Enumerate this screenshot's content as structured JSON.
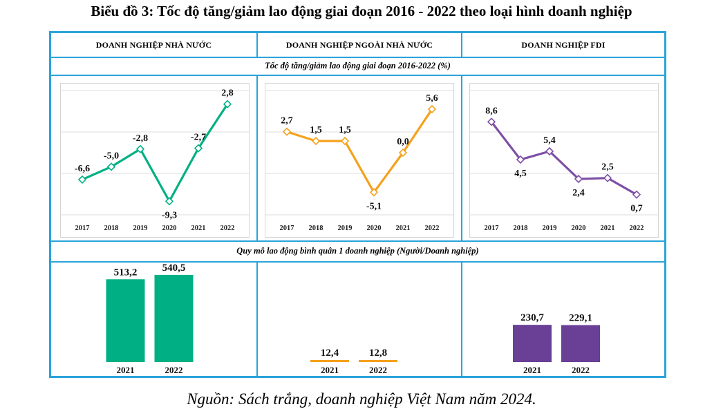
{
  "title": "Biểu đồ 3: Tốc độ tăng/giảm lao động giai đoạn 2016 - 2022 theo loại hình doanh nghiệp",
  "source": "Nguồn: Sách trắng, doanh nghiệp Việt Nam năm 2024.",
  "panels": [
    {
      "header": "DOANH NGHIỆP NHÀ NƯỚC"
    },
    {
      "header": "DOANH NGHIỆP NGOÀI NHÀ NƯỚC"
    },
    {
      "header": "DOANH NGHIỆP FDI"
    }
  ],
  "line_section_title": "Tốc độ tăng/giảm lao động giai đoạn 2016-2022 (%)",
  "bar_section_title": "Quy mô lao động bình quân 1 doanh nghiệp  (Người/Doanh nghiệp)",
  "chart_data": [
    {
      "type": "line",
      "panel": "DOANH NGHIỆP NHÀ NƯỚC",
      "title": "Tốc độ tăng/giảm lao động giai đoạn 2016-2022 (%)",
      "x": [
        "2017",
        "2018",
        "2019",
        "2020",
        "2021",
        "2022"
      ],
      "values": [
        -6.6,
        -5.0,
        -2.8,
        -9.3,
        -2.7,
        2.8
      ],
      "labels": [
        "-6,6",
        "-5,0",
        "-2,8",
        "-9,3",
        "-2,7",
        "2,8"
      ],
      "ylim": [
        -11,
        4.5
      ],
      "color": "#00b084",
      "grid": true
    },
    {
      "type": "line",
      "panel": "DOANH NGHIỆP NGOÀI NHÀ NƯỚC",
      "title": "Tốc độ tăng/giảm lao động giai đoạn 2016-2022 (%)",
      "x": [
        "2017",
        "2018",
        "2019",
        "2020",
        "2021",
        "2022"
      ],
      "values": [
        2.7,
        1.5,
        1.5,
        -5.1,
        0.0,
        5.6
      ],
      "labels": [
        "2,7",
        "1,5",
        "1,5",
        "-5,1",
        "0,0",
        "5,6"
      ],
      "ylim": [
        -8,
        8
      ],
      "color": "#f5a11d",
      "grid": true
    },
    {
      "type": "line",
      "panel": "DOANH NGHIỆP FDI",
      "title": "Tốc độ tăng/giảm lao động giai đoạn 2016-2022 (%)",
      "x": [
        "2017",
        "2018",
        "2019",
        "2020",
        "2021",
        "2022"
      ],
      "values": [
        8.6,
        4.5,
        5.4,
        2.4,
        2.5,
        0.7
      ],
      "labels": [
        "8,6",
        "4,5",
        "5,4",
        "2,4",
        "2,5",
        "0,7"
      ],
      "ylim": [
        -1.5,
        12
      ],
      "color": "#7e4fa6",
      "grid": true
    },
    {
      "type": "bar",
      "panel": "DOANH NGHIỆP NHÀ NƯỚC",
      "title": "Quy mô lao động bình quân 1 doanh nghiệp  (Người/Doanh nghiệp)",
      "categories": [
        "2021",
        "2022"
      ],
      "values": [
        513.2,
        540.5
      ],
      "labels": [
        "513,2",
        "540,5"
      ],
      "ylim": [
        0,
        600
      ],
      "color": "#00b084"
    },
    {
      "type": "bar",
      "panel": "DOANH NGHIỆP NGOÀI NHÀ NƯỚC",
      "title": "Quy mô lao động bình quân 1 doanh nghiệp  (Người/Doanh nghiệp)",
      "categories": [
        "2021",
        "2022"
      ],
      "values": [
        12.4,
        12.8
      ],
      "labels": [
        "12,4",
        "12,8"
      ],
      "ylim": [
        0,
        600
      ],
      "color": "#f5a11d"
    },
    {
      "type": "bar",
      "panel": "DOANH NGHIỆP FDI",
      "title": "Quy mô lao động bình quân 1 doanh nghiệp  (Người/Doanh nghiệp)",
      "categories": [
        "2021",
        "2022"
      ],
      "values": [
        230.7,
        229.1
      ],
      "labels": [
        "230,7",
        "229,1"
      ],
      "ylim": [
        0,
        600
      ],
      "color": "#6a3f96"
    }
  ]
}
